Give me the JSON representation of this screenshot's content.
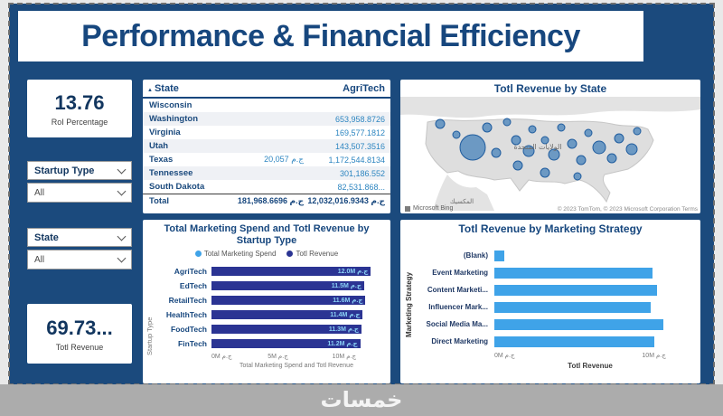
{
  "title": "Performance & Financial Efficiency",
  "watermark": "خمسات",
  "kpi": {
    "roi_value": "13.76",
    "roi_label": "RoI Percentage",
    "revenue_value": "69.73...",
    "revenue_label": "Totl Revenue"
  },
  "slicers": {
    "startup_type_label": "Startup Type",
    "startup_type_value": "All",
    "state_label": "State",
    "state_value": "All"
  },
  "map": {
    "title": "Totl Revenue by State",
    "country_label": "الولايات المتحدة",
    "mexico_label": "المكسيك",
    "logo": "Microsoft Bing",
    "attribution": "© 2023 TomTom, © 2023 Microsoft Corporation Terms"
  },
  "colors": {
    "background_navy": "#1b4a7d",
    "bar_dark": "#2b3493",
    "bar_light_blue": "#3fa3e8",
    "value_teal": "#2e86c1"
  },
  "chart_data": [
    {
      "type": "table",
      "title": "State and AgriTech revenue matrix",
      "columns": [
        "State",
        "",
        "AgriTech"
      ],
      "rows": [
        [
          "Wisconsin",
          "",
          ""
        ],
        [
          "Washington",
          "",
          "653,958.8726"
        ],
        [
          "Virginia",
          "",
          "169,577.1812"
        ],
        [
          "Utah",
          "",
          "143,507.3516"
        ],
        [
          "Texas",
          "20,057 ج.م",
          "1,172,544.8134"
        ],
        [
          "Tennessee",
          "",
          "301,186.552"
        ],
        [
          "South Dakota",
          "",
          "82,531.868..."
        ],
        [
          "Total",
          "181,968.6696 ج.م",
          "12,032,016.9343 ج.م"
        ]
      ]
    },
    {
      "type": "map-bubble",
      "title": "Totl Revenue by State",
      "description": "US map with proportional revenue bubbles per state; largest bubble over Nevada/California region"
    },
    {
      "type": "bar",
      "title": "Total Marketing Spend and Totl Revenue by Startup Type",
      "title_lines": [
        "Total Marketing Spend and Totl Revenue by",
        "Startup Type"
      ],
      "legend": [
        "Total Marketing Spend",
        "Totl Revenue"
      ],
      "categories": [
        "AgriTech",
        "EdTech",
        "RetailTech",
        "HealthTech",
        "FoodTech",
        "FinTech"
      ],
      "values": [
        12.0,
        11.5,
        11.6,
        11.4,
        11.3,
        11.2
      ],
      "labels": [
        "12.0M ج.م",
        "11.5M ج.م",
        "11.6M ج.م",
        "11.4M ج.م",
        "11.3M ج.م",
        "11.2M ج.م"
      ],
      "x_ticks": [
        "0M ج.م",
        "5M ج.م",
        "10M ج.م"
      ],
      "xlabel": "Total Marketing Spend and Totl Revenue",
      "ylabel": "Startup Type",
      "xlim": [
        0,
        12.8
      ]
    },
    {
      "type": "bar",
      "title": "Totl Revenue by Marketing Strategy",
      "categories": [
        "(Blank)",
        "Event Marketing",
        "Content Marketi...",
        "Influencer Mark...",
        "Social Media Ma...",
        "Direct Marketing"
      ],
      "values": [
        0.6,
        9.9,
        10.2,
        9.8,
        10.6,
        10.0
      ],
      "x_ticks": [
        "0M ج.م",
        "10M ج.م"
      ],
      "xlabel": "Totl Revenue",
      "ylabel": "Marketing Strategy",
      "xlim": [
        0,
        12
      ]
    }
  ]
}
